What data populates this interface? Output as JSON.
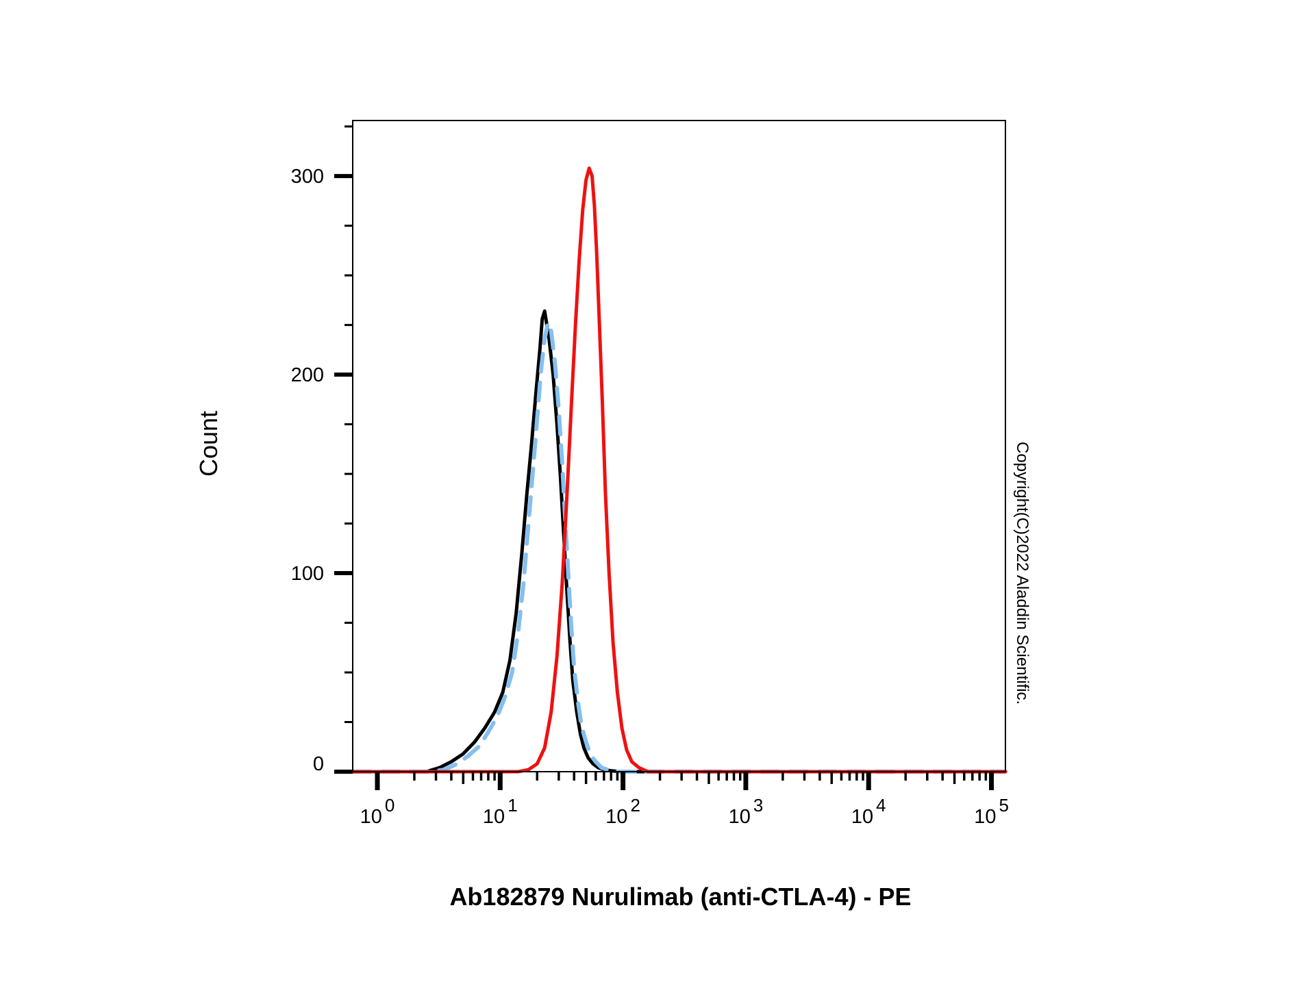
{
  "chart_data": {
    "type": "line",
    "xlabel": "Ab182879 Nurulimab (anti-CTLA-4) - PE",
    "ylabel": "Count",
    "x_scale": "log",
    "xlim": [
      0.63,
      130000
    ],
    "ylim": [
      0,
      328
    ],
    "y_ticks": [
      0,
      100,
      200,
      300
    ],
    "x_ticks": [
      {
        "base": "10",
        "exp": "0",
        "value": 1
      },
      {
        "base": "10",
        "exp": "1",
        "value": 10
      },
      {
        "base": "10",
        "exp": "2",
        "value": 100
      },
      {
        "base": "10",
        "exp": "3",
        "value": 1000
      },
      {
        "base": "10",
        "exp": "4",
        "value": 10000
      },
      {
        "base": "10",
        "exp": "5",
        "value": 100000
      }
    ],
    "grid": false,
    "legend": "none",
    "series": [
      {
        "color": "#000000",
        "style": "solid",
        "x": [
          0.63,
          2.5,
          3.2,
          4.0,
          5.0,
          6.2,
          7.5,
          9.0,
          10.5,
          12.0,
          13.5,
          15.0,
          16.5,
          18.0,
          19.5,
          21.0,
          22.0,
          23.0,
          25.0,
          27.0,
          29.0,
          31.0,
          33.0,
          35.0,
          37.0,
          39.0,
          42.0,
          45.0,
          48.0,
          52.0,
          57.0,
          63.0,
          70.0,
          80.0,
          95.0,
          130000
        ],
        "y": [
          0,
          0,
          2,
          5,
          9,
          15,
          22,
          30,
          40,
          56,
          80,
          110,
          140,
          165,
          190,
          212,
          228,
          232,
          218,
          200,
          175,
          148,
          118,
          90,
          66,
          46,
          30,
          19,
          12,
          7,
          4,
          2,
          1,
          0.5,
          0,
          0
        ]
      },
      {
        "color": "#85bff0",
        "style": "dashed",
        "x": [
          0.63,
          2.7,
          3.5,
          4.5,
          5.5,
          6.8,
          8.0,
          9.5,
          11.0,
          12.5,
          14.0,
          15.5,
          17.0,
          18.5,
          20.0,
          21.5,
          23.0,
          24.5,
          26.0,
          28.0,
          30.0,
          32.0,
          34.0,
          36.0,
          38.0,
          40.0,
          43.0,
          46.0,
          50.0,
          55.0,
          60.0,
          67.0,
          75.0,
          90.0,
          130000
        ],
        "y": [
          0,
          0,
          1,
          4,
          8,
          13,
          20,
          28,
          38,
          50,
          70,
          95,
          125,
          152,
          178,
          202,
          218,
          226,
          222,
          205,
          182,
          155,
          125,
          97,
          72,
          52,
          35,
          23,
          15,
          8,
          5,
          2,
          1,
          0,
          0
        ]
      },
      {
        "color": "#ee1111",
        "style": "solid",
        "x": [
          0.63,
          14.0,
          17.0,
          20.0,
          23.0,
          26.0,
          29.0,
          32.0,
          35.0,
          38.0,
          41.0,
          44.0,
          47.0,
          50.0,
          53.0,
          56.0,
          58.5,
          61.0,
          64.0,
          68.0,
          72.0,
          77.0,
          83.0,
          90.0,
          98.0,
          107.0,
          118.0,
          135.0,
          160.0,
          130000
        ],
        "y": [
          0,
          0,
          1,
          4,
          12,
          30,
          58,
          95,
          140,
          185,
          225,
          258,
          283,
          298,
          304,
          300,
          285,
          262,
          228,
          185,
          140,
          100,
          65,
          40,
          22,
          11,
          5,
          2,
          0,
          0
        ]
      }
    ],
    "annotations": [
      "Copyright(C)2022 Aladdin Scientific."
    ]
  }
}
